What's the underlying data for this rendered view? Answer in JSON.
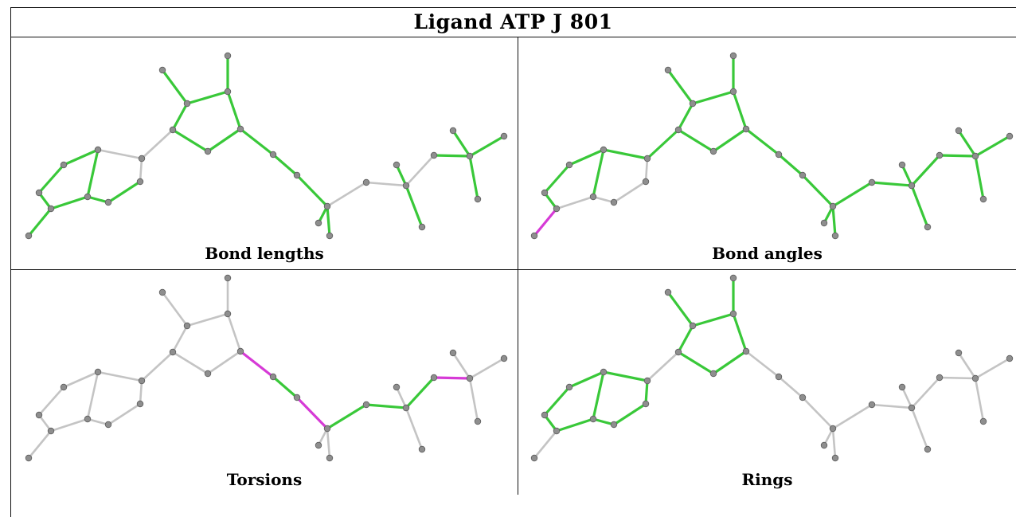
{
  "title": "Ligand ATP J 801",
  "panels": [
    {
      "caption": "Bond lengths",
      "hilite": {}
    },
    {
      "caption": "Bond angles",
      "hilite": {
        "41-42": "m",
        "41-43": "g",
        "40-42": "g",
        "43-44": "g",
        "42-44": "g"
      }
    },
    {
      "caption": "Torsions",
      "hilite": {}
    },
    {
      "caption": "Rings",
      "hilite": {}
    }
  ],
  "colors": {
    "green": "#39c839",
    "magenta": "#d63ad6",
    "gray": "#c4c4c4",
    "atom": "#8e8e8e"
  }
}
